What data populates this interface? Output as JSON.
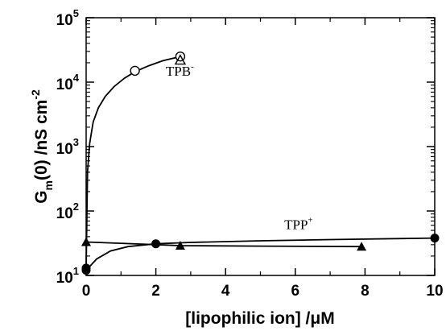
{
  "chart_data": {
    "type": "scatter",
    "yscale": "log",
    "xlim": [
      0,
      10
    ],
    "ylim": [
      10,
      100000
    ],
    "xticks": [
      0,
      2,
      4,
      6,
      8,
      10
    ],
    "xtick_labels": [
      "0",
      "2",
      "4",
      "6",
      "8",
      "10"
    ],
    "yticks": [
      10,
      100,
      1000,
      10000,
      100000
    ],
    "ytick_labels": [
      {
        "base": "10",
        "exp": "1"
      },
      {
        "base": "10",
        "exp": "2"
      },
      {
        "base": "10",
        "exp": "3"
      },
      {
        "base": "10",
        "exp": "4"
      },
      {
        "base": "10",
        "exp": "5"
      }
    ],
    "xlabel": "[lipophilic ion] /μM",
    "ylabel": {
      "prefix": "G",
      "sub": "m",
      "suffix": "(0) /nS cm",
      "sup": "-2"
    },
    "grid": false,
    "annotations": [
      {
        "base": "TPB",
        "sup": "-",
        "x": 2.7,
        "y": 12500
      },
      {
        "base": "TPP",
        "sup": "+",
        "x": 6.1,
        "y": 52
      }
    ],
    "series": [
      {
        "marker": "open-circle",
        "points": [
          [
            1.4,
            15000
          ],
          [
            2.7,
            25000
          ]
        ],
        "fit": [
          [
            0.0,
            12
          ],
          [
            0.04,
            400
          ],
          [
            0.1,
            1100
          ],
          [
            0.2,
            2400
          ],
          [
            0.35,
            4000
          ],
          [
            0.55,
            6000
          ],
          [
            0.8,
            8500
          ],
          [
            1.1,
            11500
          ],
          [
            1.4,
            14500
          ],
          [
            1.8,
            18000
          ],
          [
            2.2,
            21500
          ],
          [
            2.7,
            25000
          ]
        ]
      },
      {
        "marker": "open-triangle",
        "points": [
          [
            2.7,
            22000
          ]
        ]
      },
      {
        "marker": "filled-circle",
        "points": [
          [
            0.0,
            13
          ],
          [
            0.0,
            12
          ],
          [
            2.0,
            31
          ],
          [
            10.0,
            38
          ]
        ],
        "fit": [
          [
            0.0,
            12
          ],
          [
            0.3,
            18
          ],
          [
            0.7,
            24
          ],
          [
            1.2,
            28
          ],
          [
            2.0,
            31
          ],
          [
            3.0,
            32.5
          ],
          [
            5.0,
            34.5
          ],
          [
            7.0,
            36
          ],
          [
            10.0,
            38
          ]
        ]
      },
      {
        "marker": "filled-triangle",
        "points": [
          [
            0.0,
            33
          ],
          [
            2.7,
            29
          ],
          [
            7.9,
            28
          ]
        ],
        "fit": [
          [
            0.0,
            33
          ],
          [
            1.0,
            31.5
          ],
          [
            2.0,
            30
          ],
          [
            2.7,
            29
          ],
          [
            5.0,
            28.5
          ],
          [
            7.9,
            28
          ]
        ]
      }
    ]
  }
}
